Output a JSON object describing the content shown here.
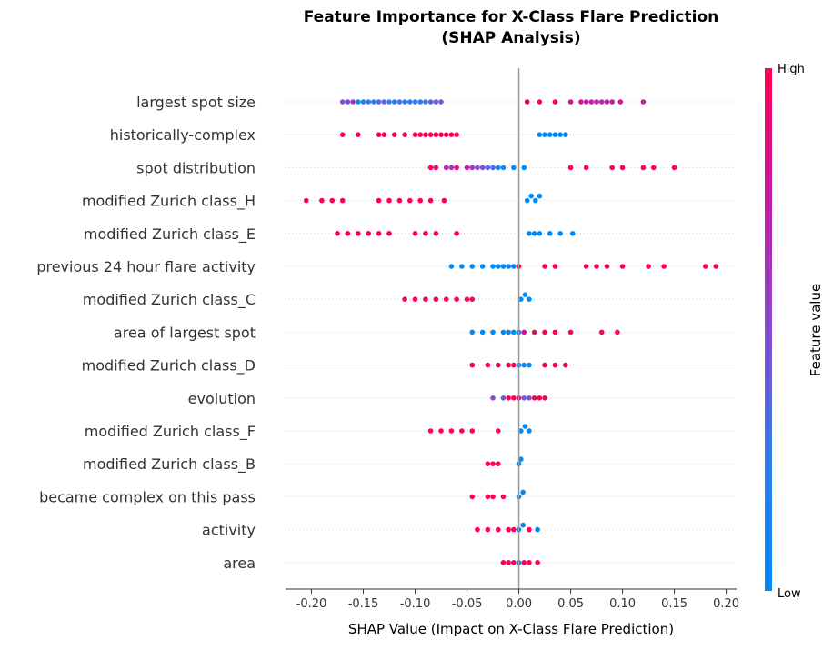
{
  "chart_data": {
    "type": "scatter",
    "title": "Feature Importance for X-Class Flare Prediction",
    "subtitle": "(SHAP Analysis)",
    "xlabel": "SHAP Value (Impact on X-Class Flare Prediction)",
    "xlim": [
      -0.225,
      0.21
    ],
    "x_ticks": [
      "-0.20",
      "-0.15",
      "-0.10",
      "-0.05",
      "0.00",
      "0.05",
      "0.10",
      "0.15",
      "0.20"
    ],
    "grid": false,
    "colorbar": {
      "title": "Feature value",
      "high_label": "High",
      "low_label": "Low",
      "high_color": "#ff0052",
      "low_color": "#008bfb"
    },
    "features": [
      {
        "name": "largest spot size",
        "points": [
          {
            "x": -0.17,
            "v": 0.5
          },
          {
            "x": -0.165,
            "v": 0.45
          },
          {
            "x": -0.16,
            "v": 0.6
          },
          {
            "x": -0.155,
            "v": 0.05
          },
          {
            "x": -0.15,
            "v": 0.1
          },
          {
            "x": -0.145,
            "v": 0.3
          },
          {
            "x": -0.14,
            "v": 0.15
          },
          {
            "x": -0.135,
            "v": 0.35
          },
          {
            "x": -0.13,
            "v": 0.4
          },
          {
            "x": -0.125,
            "v": 0.2
          },
          {
            "x": -0.12,
            "v": 0.25
          },
          {
            "x": -0.115,
            "v": 0.3
          },
          {
            "x": -0.11,
            "v": 0.2
          },
          {
            "x": -0.105,
            "v": 0.25
          },
          {
            "x": -0.1,
            "v": 0.3
          },
          {
            "x": -0.095,
            "v": 0.2
          },
          {
            "x": -0.09,
            "v": 0.3
          },
          {
            "x": -0.085,
            "v": 0.35
          },
          {
            "x": -0.08,
            "v": 0.4
          },
          {
            "x": -0.075,
            "v": 0.45
          },
          {
            "x": 0.008,
            "v": 1.0
          },
          {
            "x": 0.02,
            "v": 0.95
          },
          {
            "x": 0.035,
            "v": 0.95
          },
          {
            "x": 0.05,
            "v": 0.85
          },
          {
            "x": 0.06,
            "v": 0.8
          },
          {
            "x": 0.065,
            "v": 0.75
          },
          {
            "x": 0.07,
            "v": 0.7
          },
          {
            "x": 0.075,
            "v": 0.75
          },
          {
            "x": 0.08,
            "v": 0.7
          },
          {
            "x": 0.085,
            "v": 0.72
          },
          {
            "x": 0.09,
            "v": 0.75
          },
          {
            "x": 0.098,
            "v": 0.8
          },
          {
            "x": 0.12,
            "v": 0.8
          }
        ]
      },
      {
        "name": "historically-complex",
        "points": [
          {
            "x": -0.17,
            "v": 1.0
          },
          {
            "x": -0.155,
            "v": 1.0
          },
          {
            "x": -0.135,
            "v": 1.0
          },
          {
            "x": -0.13,
            "v": 1.0
          },
          {
            "x": -0.12,
            "v": 1.0
          },
          {
            "x": -0.11,
            "v": 1.0
          },
          {
            "x": -0.1,
            "v": 1.0
          },
          {
            "x": -0.095,
            "v": 1.0
          },
          {
            "x": -0.09,
            "v": 1.0
          },
          {
            "x": -0.085,
            "v": 1.0
          },
          {
            "x": -0.08,
            "v": 1.0
          },
          {
            "x": -0.075,
            "v": 1.0
          },
          {
            "x": -0.07,
            "v": 1.0
          },
          {
            "x": -0.065,
            "v": 1.0
          },
          {
            "x": -0.06,
            "v": 1.0
          },
          {
            "x": 0.02,
            "v": 0.0
          },
          {
            "x": 0.025,
            "v": 0.0
          },
          {
            "x": 0.03,
            "v": 0.0
          },
          {
            "x": 0.035,
            "v": 0.0
          },
          {
            "x": 0.04,
            "v": 0.0
          },
          {
            "x": 0.045,
            "v": 0.0
          }
        ]
      },
      {
        "name": "spot distribution",
        "points": [
          {
            "x": -0.085,
            "v": 1.0
          },
          {
            "x": -0.08,
            "v": 0.85
          },
          {
            "x": -0.07,
            "v": 0.7
          },
          {
            "x": -0.065,
            "v": 0.6
          },
          {
            "x": -0.06,
            "v": 0.9
          },
          {
            "x": -0.05,
            "v": 0.75
          },
          {
            "x": -0.045,
            "v": 0.6
          },
          {
            "x": -0.04,
            "v": 0.5
          },
          {
            "x": -0.035,
            "v": 0.45
          },
          {
            "x": -0.03,
            "v": 0.4
          },
          {
            "x": -0.025,
            "v": 0.3
          },
          {
            "x": -0.02,
            "v": 0.2
          },
          {
            "x": -0.015,
            "v": 0.1
          },
          {
            "x": -0.005,
            "v": 0.05
          },
          {
            "x": 0.005,
            "v": 0.0
          },
          {
            "x": 0.05,
            "v": 1.0
          },
          {
            "x": 0.065,
            "v": 1.0
          },
          {
            "x": 0.09,
            "v": 1.0
          },
          {
            "x": 0.1,
            "v": 1.0
          },
          {
            "x": 0.12,
            "v": 1.0
          },
          {
            "x": 0.13,
            "v": 1.0
          },
          {
            "x": 0.15,
            "v": 1.0
          }
        ]
      },
      {
        "name": "modified Zurich class_H",
        "points": [
          {
            "x": -0.205,
            "v": 1.0
          },
          {
            "x": -0.19,
            "v": 1.0
          },
          {
            "x": -0.18,
            "v": 1.0
          },
          {
            "x": -0.17,
            "v": 1.0
          },
          {
            "x": -0.135,
            "v": 1.0
          },
          {
            "x": -0.125,
            "v": 1.0
          },
          {
            "x": -0.115,
            "v": 1.0
          },
          {
            "x": -0.105,
            "v": 1.0
          },
          {
            "x": -0.095,
            "v": 1.0
          },
          {
            "x": -0.085,
            "v": 1.0
          },
          {
            "x": -0.072,
            "v": 1.0
          },
          {
            "x": 0.008,
            "v": 0.0
          },
          {
            "x": 0.012,
            "v": 0.0
          },
          {
            "x": 0.016,
            "v": 0.0
          },
          {
            "x": 0.02,
            "v": 0.0
          }
        ]
      },
      {
        "name": "modified Zurich class_E",
        "points": [
          {
            "x": -0.175,
            "v": 1.0
          },
          {
            "x": -0.165,
            "v": 1.0
          },
          {
            "x": -0.155,
            "v": 1.0
          },
          {
            "x": -0.145,
            "v": 1.0
          },
          {
            "x": -0.135,
            "v": 1.0
          },
          {
            "x": -0.125,
            "v": 1.0
          },
          {
            "x": -0.1,
            "v": 1.0
          },
          {
            "x": -0.09,
            "v": 1.0
          },
          {
            "x": -0.08,
            "v": 1.0
          },
          {
            "x": -0.06,
            "v": 1.0
          },
          {
            "x": 0.01,
            "v": 0.0
          },
          {
            "x": 0.015,
            "v": 0.0
          },
          {
            "x": 0.02,
            "v": 0.0
          },
          {
            "x": 0.03,
            "v": 0.0
          },
          {
            "x": 0.04,
            "v": 0.0
          },
          {
            "x": 0.052,
            "v": 0.0
          }
        ]
      },
      {
        "name": "previous 24 hour flare activity",
        "points": [
          {
            "x": -0.065,
            "v": 0.0
          },
          {
            "x": -0.055,
            "v": 0.0
          },
          {
            "x": -0.045,
            "v": 0.0
          },
          {
            "x": -0.035,
            "v": 0.0
          },
          {
            "x": -0.025,
            "v": 0.0
          },
          {
            "x": -0.02,
            "v": 0.0
          },
          {
            "x": -0.015,
            "v": 0.0
          },
          {
            "x": -0.01,
            "v": 0.0
          },
          {
            "x": -0.005,
            "v": 0.0
          },
          {
            "x": 0.0,
            "v": 1.0
          },
          {
            "x": 0.025,
            "v": 1.0
          },
          {
            "x": 0.035,
            "v": 1.0
          },
          {
            "x": 0.065,
            "v": 1.0
          },
          {
            "x": 0.075,
            "v": 1.0
          },
          {
            "x": 0.085,
            "v": 1.0
          },
          {
            "x": 0.1,
            "v": 1.0
          },
          {
            "x": 0.125,
            "v": 1.0
          },
          {
            "x": 0.14,
            "v": 1.0
          },
          {
            "x": 0.18,
            "v": 1.0
          },
          {
            "x": 0.19,
            "v": 1.0
          }
        ]
      },
      {
        "name": "modified Zurich class_C",
        "points": [
          {
            "x": -0.11,
            "v": 1.0
          },
          {
            "x": -0.1,
            "v": 1.0
          },
          {
            "x": -0.09,
            "v": 1.0
          },
          {
            "x": -0.08,
            "v": 1.0
          },
          {
            "x": -0.07,
            "v": 1.0
          },
          {
            "x": -0.06,
            "v": 1.0
          },
          {
            "x": -0.05,
            "v": 1.0
          },
          {
            "x": -0.045,
            "v": 1.0
          },
          {
            "x": 0.002,
            "v": 0.0
          },
          {
            "x": 0.006,
            "v": 0.0
          },
          {
            "x": 0.01,
            "v": 0.0
          }
        ]
      },
      {
        "name": "area of largest spot",
        "points": [
          {
            "x": -0.045,
            "v": 0.0
          },
          {
            "x": -0.035,
            "v": 0.0
          },
          {
            "x": -0.025,
            "v": 0.0
          },
          {
            "x": -0.015,
            "v": 0.0
          },
          {
            "x": -0.01,
            "v": 0.0
          },
          {
            "x": -0.005,
            "v": 0.0
          },
          {
            "x": 0.0,
            "v": 0.05
          },
          {
            "x": 0.005,
            "v": 0.8
          },
          {
            "x": 0.015,
            "v": 0.9
          },
          {
            "x": 0.025,
            "v": 1.0
          },
          {
            "x": 0.035,
            "v": 1.0
          },
          {
            "x": 0.05,
            "v": 1.0
          },
          {
            "x": 0.08,
            "v": 1.0
          },
          {
            "x": 0.095,
            "v": 1.0
          }
        ]
      },
      {
        "name": "modified Zurich class_D",
        "points": [
          {
            "x": -0.045,
            "v": 1.0
          },
          {
            "x": -0.03,
            "v": 1.0
          },
          {
            "x": -0.02,
            "v": 1.0
          },
          {
            "x": -0.01,
            "v": 1.0
          },
          {
            "x": -0.005,
            "v": 1.0
          },
          {
            "x": 0.0,
            "v": 0.0
          },
          {
            "x": 0.005,
            "v": 0.0
          },
          {
            "x": 0.01,
            "v": 0.0
          },
          {
            "x": 0.025,
            "v": 1.0
          },
          {
            "x": 0.035,
            "v": 1.0
          },
          {
            "x": 0.045,
            "v": 1.0
          }
        ]
      },
      {
        "name": "evolution",
        "points": [
          {
            "x": -0.025,
            "v": 0.5
          },
          {
            "x": -0.015,
            "v": 0.4
          },
          {
            "x": -0.01,
            "v": 1.0
          },
          {
            "x": -0.005,
            "v": 1.0
          },
          {
            "x": 0.0,
            "v": 0.9
          },
          {
            "x": 0.005,
            "v": 0.4
          },
          {
            "x": 0.01,
            "v": 0.5
          },
          {
            "x": 0.015,
            "v": 1.0
          },
          {
            "x": 0.02,
            "v": 1.0
          },
          {
            "x": 0.025,
            "v": 1.0
          }
        ]
      },
      {
        "name": "modified Zurich class_F",
        "points": [
          {
            "x": -0.085,
            "v": 1.0
          },
          {
            "x": -0.075,
            "v": 1.0
          },
          {
            "x": -0.065,
            "v": 1.0
          },
          {
            "x": -0.055,
            "v": 1.0
          },
          {
            "x": -0.045,
            "v": 1.0
          },
          {
            "x": -0.02,
            "v": 1.0
          },
          {
            "x": 0.002,
            "v": 0.0
          },
          {
            "x": 0.006,
            "v": 0.0
          },
          {
            "x": 0.01,
            "v": 0.0
          }
        ]
      },
      {
        "name": "modified Zurich class_B",
        "points": [
          {
            "x": -0.03,
            "v": 1.0
          },
          {
            "x": -0.025,
            "v": 1.0
          },
          {
            "x": -0.02,
            "v": 1.0
          },
          {
            "x": 0.0,
            "v": 0.0
          },
          {
            "x": 0.002,
            "v": 0.0
          }
        ]
      },
      {
        "name": "became complex on this pass",
        "points": [
          {
            "x": -0.045,
            "v": 1.0
          },
          {
            "x": -0.03,
            "v": 1.0
          },
          {
            "x": -0.025,
            "v": 1.0
          },
          {
            "x": -0.015,
            "v": 1.0
          },
          {
            "x": 0.0,
            "v": 0.0
          },
          {
            "x": 0.004,
            "v": 0.0
          }
        ]
      },
      {
        "name": "activity",
        "points": [
          {
            "x": -0.04,
            "v": 1.0
          },
          {
            "x": -0.03,
            "v": 1.0
          },
          {
            "x": -0.02,
            "v": 1.0
          },
          {
            "x": -0.01,
            "v": 1.0
          },
          {
            "x": -0.005,
            "v": 1.0
          },
          {
            "x": 0.0,
            "v": 0.0
          },
          {
            "x": 0.004,
            "v": 0.0
          },
          {
            "x": 0.01,
            "v": 1.0
          },
          {
            "x": 0.018,
            "v": 0.0
          }
        ]
      },
      {
        "name": "area",
        "points": [
          {
            "x": -0.015,
            "v": 1.0
          },
          {
            "x": -0.01,
            "v": 1.0
          },
          {
            "x": -0.005,
            "v": 1.0
          },
          {
            "x": 0.0,
            "v": 0.0
          },
          {
            "x": 0.005,
            "v": 1.0
          },
          {
            "x": 0.01,
            "v": 1.0
          },
          {
            "x": 0.018,
            "v": 1.0
          }
        ]
      }
    ]
  }
}
